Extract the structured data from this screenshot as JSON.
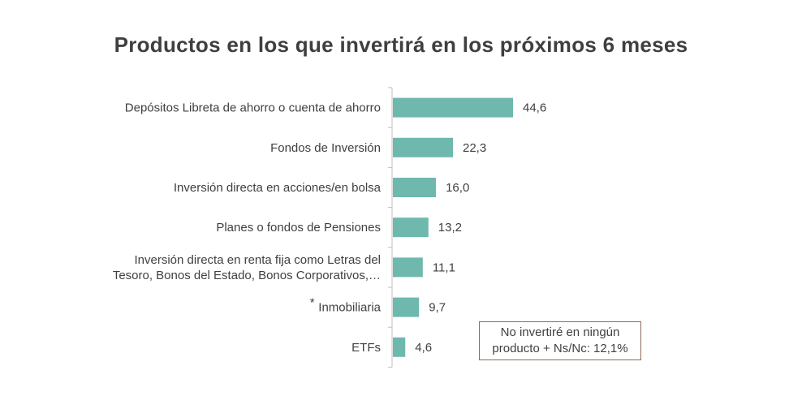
{
  "chart_data": {
    "type": "bar",
    "orientation": "horizontal",
    "title": "Productos en los que invertirá en los próximos 6 meses",
    "categories": [
      [
        "Depósitos Libreta de ahorro o cuenta de ahorro"
      ],
      [
        "Fondos de Inversión"
      ],
      [
        "Inversión directa en acciones/en bolsa"
      ],
      [
        "Planes o fondos de Pensiones"
      ],
      [
        "Inversión directa en renta fija como Letras del",
        "Tesoro, Bonos del Estado, Bonos Corporativos,…"
      ],
      [
        "Inmobiliaria"
      ],
      [
        "ETFs"
      ]
    ],
    "values": [
      44.6,
      22.3,
      16.0,
      13.2,
      11.1,
      9.7,
      4.6
    ],
    "value_labels": [
      "44,6",
      "22,3",
      "16,0",
      "13,2",
      "11,1",
      "9,7",
      "4,6"
    ],
    "category_markers": [
      "",
      "",
      "",
      "",
      "",
      "*",
      ""
    ],
    "xlabel": "",
    "ylabel": "",
    "xlim": [
      0,
      50
    ],
    "grid": false,
    "bar_color": "#6fb8ae",
    "annotation": {
      "line1": "No invertiré en ningún",
      "line2": "producto + Ns/Nc: 12,1%"
    }
  }
}
